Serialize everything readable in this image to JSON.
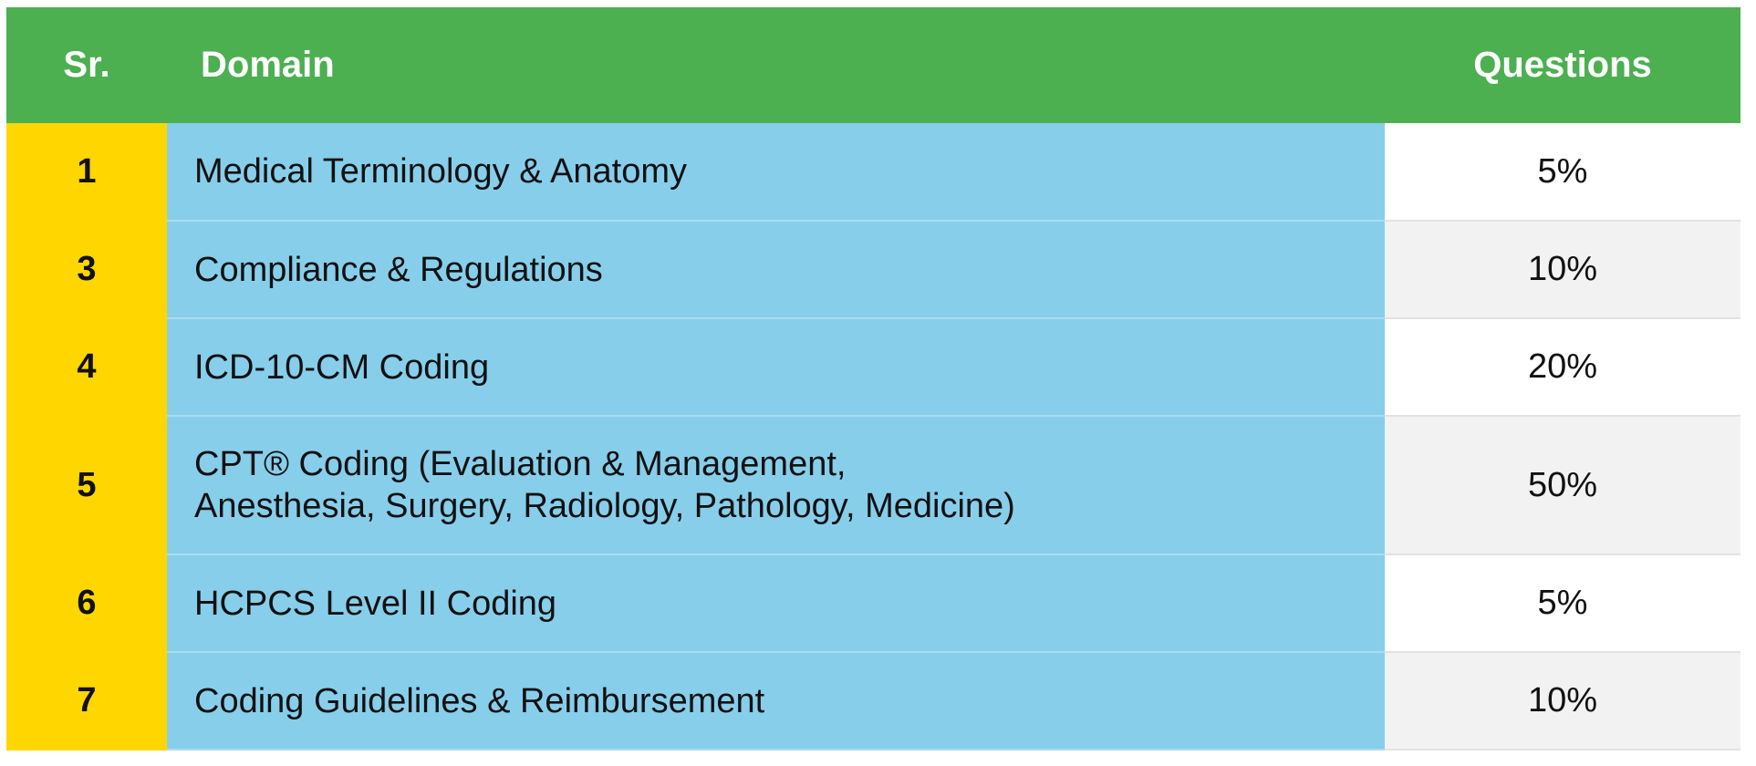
{
  "table": {
    "headers": {
      "sr": "Sr.",
      "domain": "Domain",
      "questions": "Questions"
    },
    "rows": [
      {
        "sr": "1",
        "domain_line1": "Medical Terminology & Anatomy",
        "domain_line2": "",
        "questions": "5%"
      },
      {
        "sr": "3",
        "domain_line1": "Compliance & Regulations",
        "domain_line2": "",
        "questions": "10%"
      },
      {
        "sr": "4",
        "domain_line1": "ICD-10-CM Coding",
        "domain_line2": "",
        "questions": "20%"
      },
      {
        "sr": "5",
        "domain_line1": "CPT® Coding (Evaluation & Management,",
        "domain_line2": "Anesthesia, Surgery, Radiology, Pathology, Medicine)",
        "questions": "50%"
      },
      {
        "sr": "6",
        "domain_line1": "HCPCS Level II Coding",
        "domain_line2": "",
        "questions": "5%"
      },
      {
        "sr": "7",
        "domain_line1": "Coding Guidelines & Reimbursement",
        "domain_line2": "",
        "questions": "10%"
      }
    ]
  },
  "colors": {
    "header_bg": "#4caf50",
    "sr_bg": "#ffd600",
    "domain_bg": "#87ceeb",
    "row_alt_bg": "#f2f2f2"
  }
}
